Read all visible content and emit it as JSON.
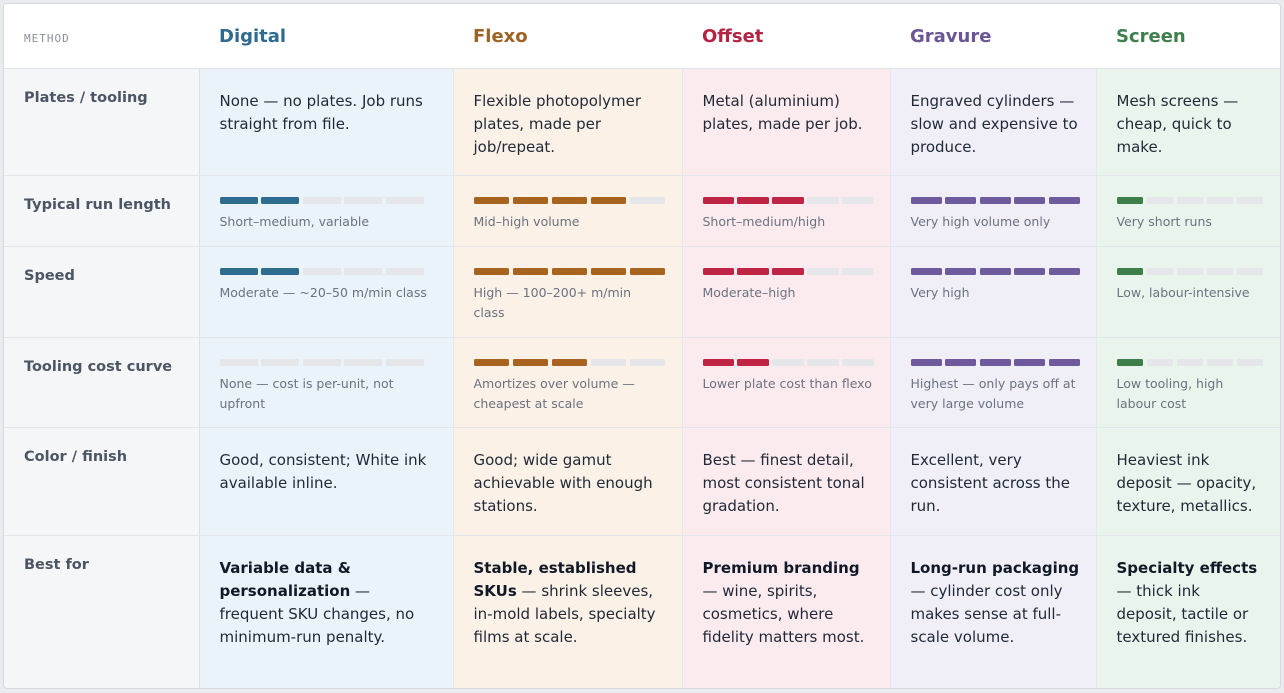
{
  "header": {
    "method_label": "METHOD",
    "columns": [
      {
        "title": "Digital",
        "color": "#2e6b8e",
        "bg": "#eaf2fa",
        "bar": "#2e6b8e"
      },
      {
        "title": "Flexo",
        "color": "#9c6324",
        "bg": "#fbf1e6",
        "bar": "#a8641f"
      },
      {
        "title": "Offset",
        "color": "#b32442",
        "bg": "#fcebee",
        "bar": "#c02444"
      },
      {
        "title": "Gravure",
        "color": "#6a5694",
        "bg": "#f0eef7",
        "bar": "#6e5a9c"
      },
      {
        "title": "Screen",
        "color": "#3f7f4c",
        "bg": "#e9f5ec",
        "bar": "#3c7f48"
      }
    ]
  },
  "rows": [
    {
      "label": "Plates / tooling",
      "type": "text",
      "cells": [
        {
          "text": "None — no plates. Job runs straight from file."
        },
        {
          "text": "Flexible photopolymer plates, made per job/repeat."
        },
        {
          "text": "Metal (aluminium) plates, made per job."
        },
        {
          "text": "Engraved cylinders — slow and expensive to produce."
        },
        {
          "text": "Mesh screens — cheap, quick to make."
        }
      ]
    },
    {
      "label": "Typical run length",
      "type": "bar",
      "cells": [
        {
          "level": 2,
          "caption": "Short–medium, variable"
        },
        {
          "level": 4,
          "caption": "Mid–high volume"
        },
        {
          "level": 3,
          "caption": "Short–medium/high"
        },
        {
          "level": 5,
          "caption": "Very high volume only"
        },
        {
          "level": 1,
          "caption": "Very short runs"
        }
      ]
    },
    {
      "label": "Speed",
      "type": "bar",
      "cells": [
        {
          "level": 2,
          "caption": "Moderate — ~20–50 m/min class"
        },
        {
          "level": 5,
          "caption": "High — 100–200+ m/min class"
        },
        {
          "level": 3,
          "caption": "Moderate–high"
        },
        {
          "level": 5,
          "caption": "Very high"
        },
        {
          "level": 1,
          "caption": "Low, labour-intensive"
        }
      ]
    },
    {
      "label": "Tooling cost curve",
      "type": "bar",
      "cells": [
        {
          "level": 0,
          "caption": "None — cost is per-unit, not upfront"
        },
        {
          "level": 3,
          "caption": "Amortizes over volume — cheapest at scale"
        },
        {
          "level": 2,
          "caption": "Lower plate cost than flexo"
        },
        {
          "level": 5,
          "caption": "Highest — only pays off at very large volume"
        },
        {
          "level": 1,
          "caption": "Low tooling, high labour cost"
        }
      ]
    },
    {
      "label": "Color / finish",
      "type": "text",
      "cells": [
        {
          "text": "Good, consistent; White ink available inline."
        },
        {
          "text": "Good; wide gamut achievable with enough stations."
        },
        {
          "text": "Best — finest detail, most consistent tonal gradation."
        },
        {
          "text": "Excellent, very consistent across the run."
        },
        {
          "text": "Heaviest ink deposit — opacity, texture, metallics."
        }
      ]
    },
    {
      "label": "Best for",
      "type": "rich",
      "cells": [
        {
          "strong": "Variable data & personalization",
          "rest": " — frequent SKU changes, no minimum-run penalty."
        },
        {
          "strong": "Stable, established SKUs",
          "rest": " — shrink sleeves, in-mold labels, specialty films at scale."
        },
        {
          "strong": "Premium branding",
          "rest": " — wine, spirits, cosmetics, where fidelity matters most."
        },
        {
          "strong": "Long-run packaging",
          "rest": " — cylinder cost only makes sense at full-scale volume."
        },
        {
          "strong": "Specialty effects",
          "rest": " — thick ink deposit, tactile or textured finishes."
        }
      ]
    }
  ]
}
